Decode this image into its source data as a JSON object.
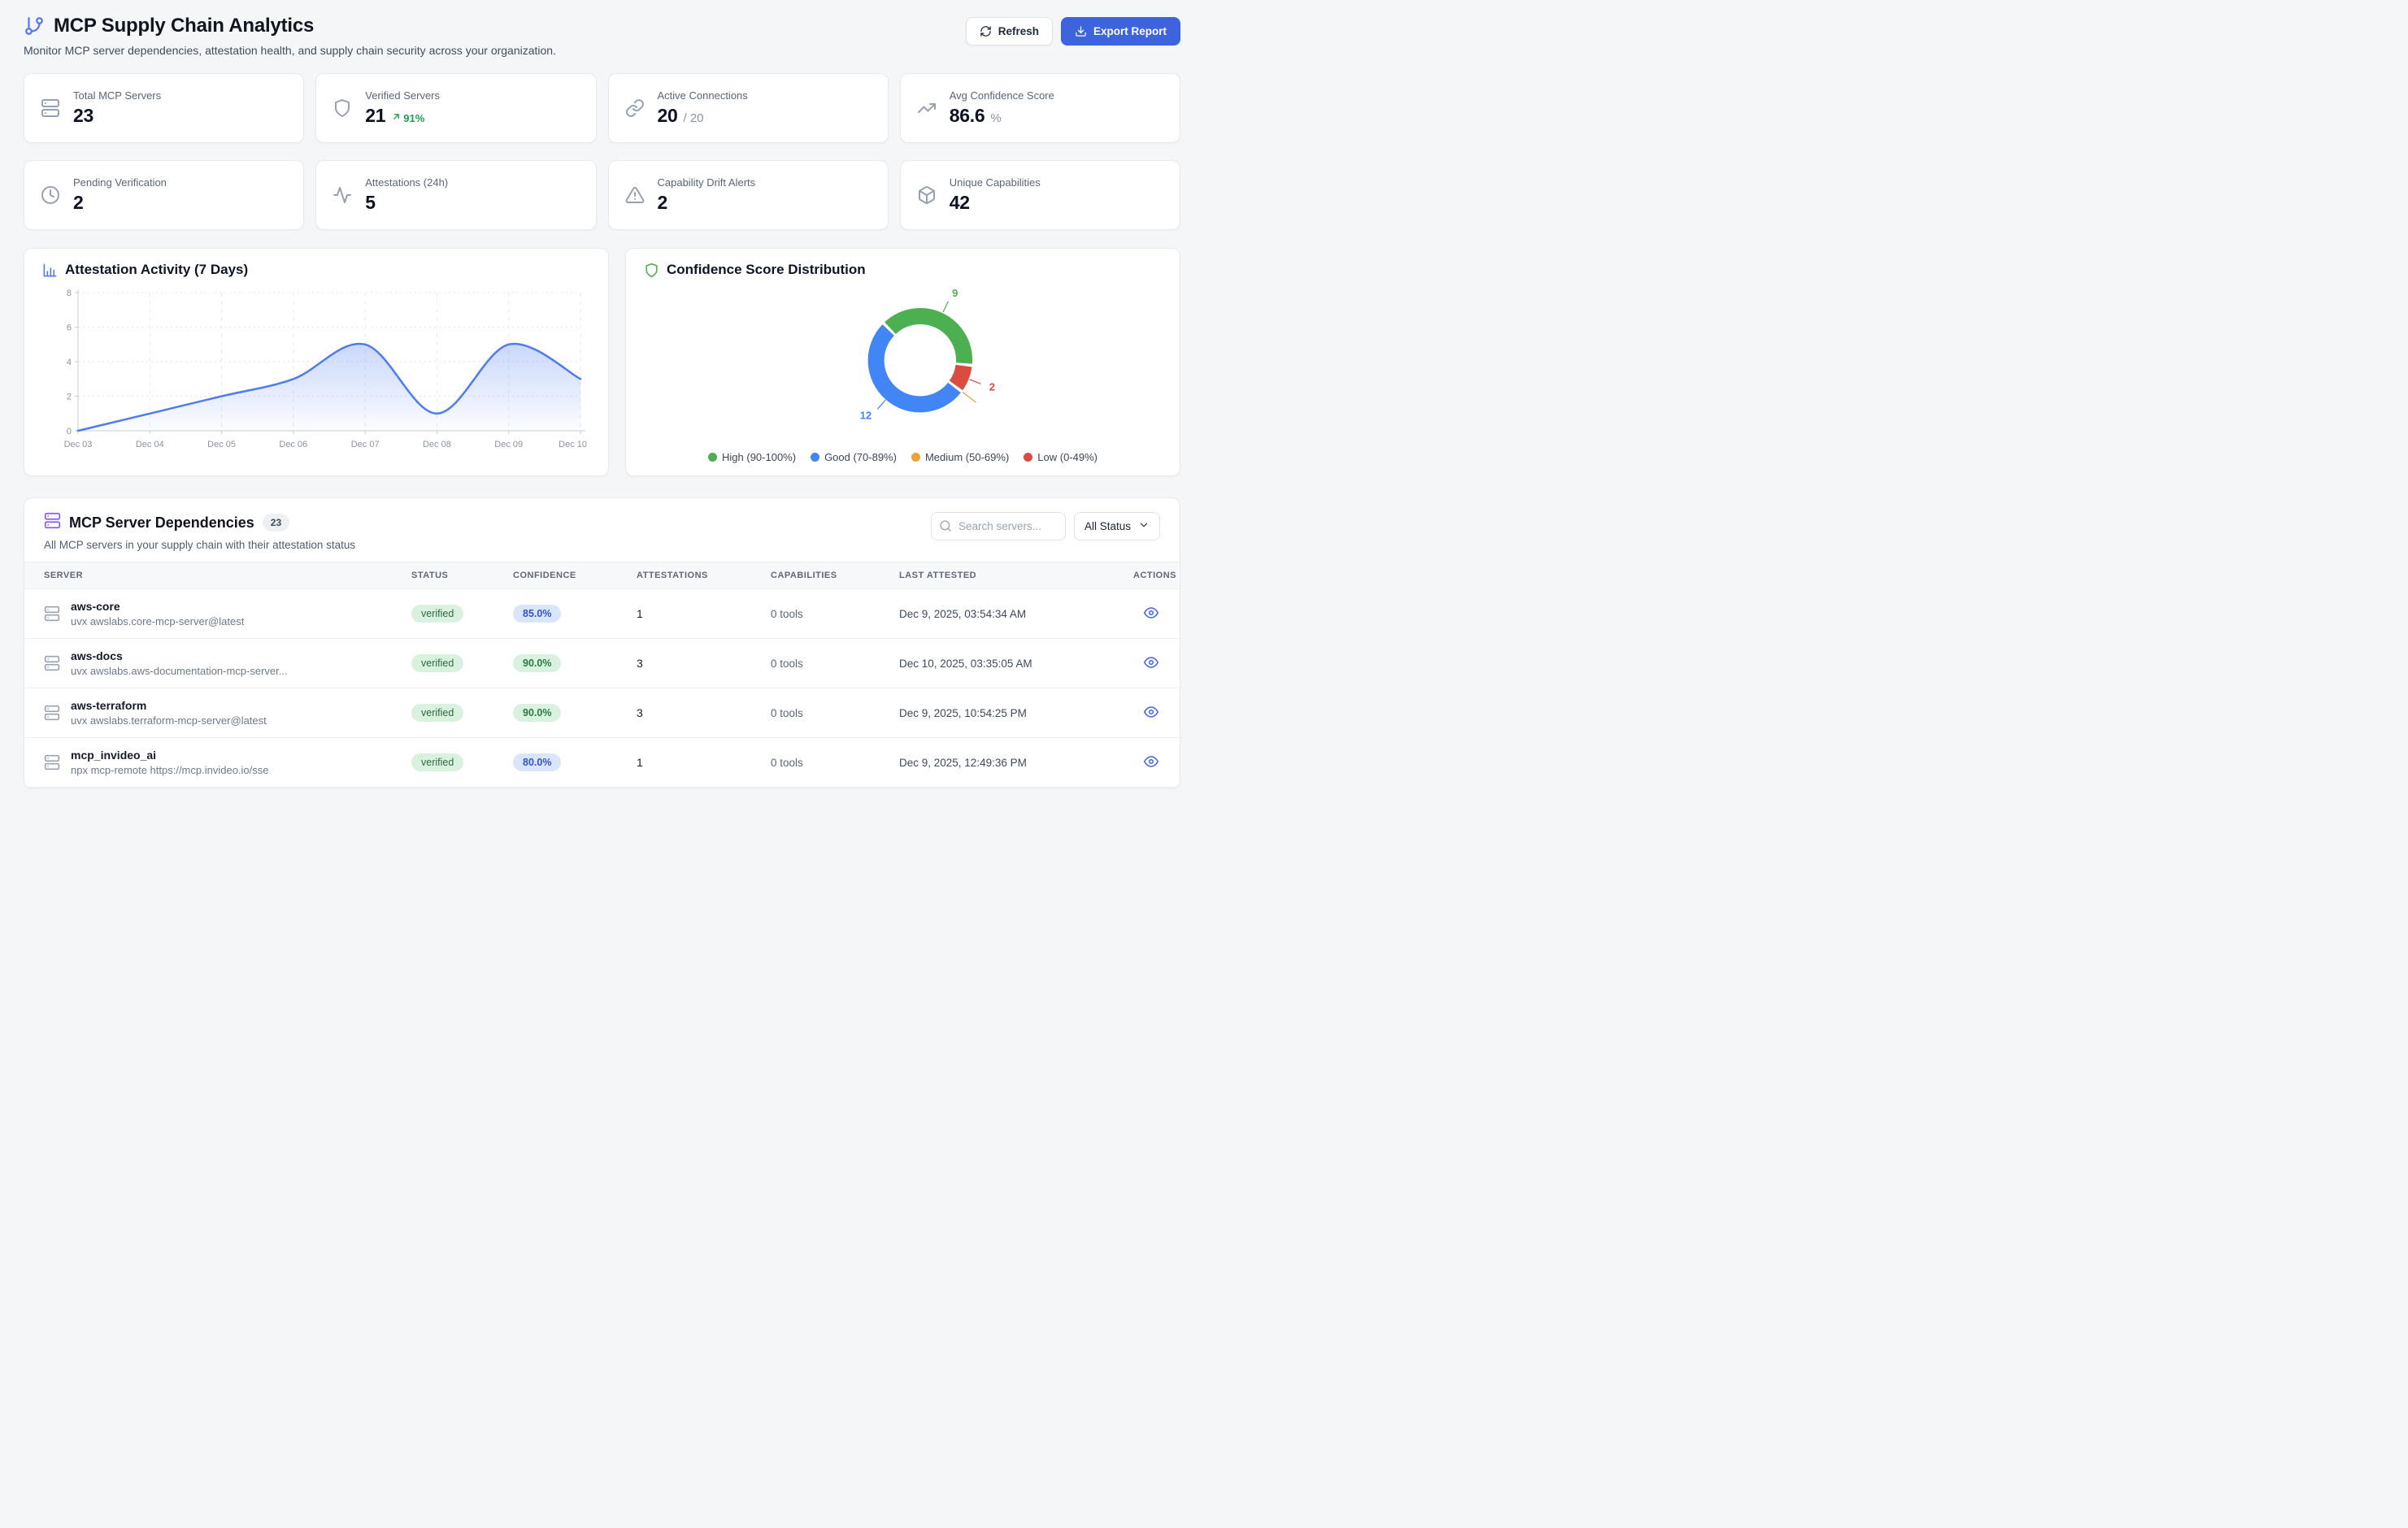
{
  "header": {
    "title": "MCP Supply Chain Analytics",
    "subtitle": "Monitor MCP server dependencies, attestation health, and supply chain security across your organization.",
    "refresh_label": "Refresh",
    "export_label": "Export Report"
  },
  "colors": {
    "accent": "#3d63dd",
    "high_green": "#4caf50",
    "good_blue": "#4285f4",
    "medium_orange": "#eba236",
    "low_red": "#da4b40",
    "line_blue": "#4e7cf0",
    "title_icon_blue": "#5574f5",
    "table_icon_purple": "#8b5cf6",
    "trend_green": "#1d9e4f"
  },
  "stats": [
    {
      "icon": "server-icon",
      "label": "Total MCP Servers",
      "value": "23"
    },
    {
      "icon": "shield-icon",
      "label": "Verified Servers",
      "value": "21",
      "trend": "91%"
    },
    {
      "icon": "link-icon",
      "label": "Active Connections",
      "value": "20",
      "suffix": "/ 20"
    },
    {
      "icon": "trending-up-icon",
      "label": "Avg Confidence Score",
      "value": "86.6",
      "suffix": "%"
    },
    {
      "icon": "clock-icon",
      "label": "Pending Verification",
      "value": "2"
    },
    {
      "icon": "activity-icon",
      "label": "Attestations (24h)",
      "value": "5"
    },
    {
      "icon": "alert-triangle-icon",
      "label": "Capability Drift Alerts",
      "value": "2"
    },
    {
      "icon": "package-icon",
      "label": "Unique Capabilities",
      "value": "42"
    }
  ],
  "chart_data": [
    {
      "type": "area",
      "title": "Attestation Activity (7 Days)",
      "x": [
        "Dec 03",
        "Dec 04",
        "Dec 05",
        "Dec 06",
        "Dec 07",
        "Dec 08",
        "Dec 09",
        "Dec 10"
      ],
      "values": [
        0,
        1,
        2,
        3,
        5,
        1,
        5,
        3
      ],
      "xlabel": "",
      "ylabel": "",
      "ylim": [
        0,
        8
      ],
      "yticks": [
        0,
        2,
        4,
        6,
        8
      ],
      "grid": true,
      "line_color": "#4e7cf0",
      "legend_position": "none"
    },
    {
      "type": "donut",
      "title": "Confidence Score Distribution",
      "segments": [
        {
          "label": "High (90-100%)",
          "value": 9,
          "color": "#4caf50"
        },
        {
          "label": "Good (70-89%)",
          "value": 12,
          "color": "#4285f4"
        },
        {
          "label": "Medium (50-69%)",
          "value": 0,
          "color": "#eba236"
        },
        {
          "label": "Low (0-49%)",
          "value": 2,
          "color": "#da4b40"
        }
      ],
      "total": 23,
      "legend_position": "bottom"
    }
  ],
  "table": {
    "title": "MCP Server Dependencies",
    "count_badge": "23",
    "subtitle": "All MCP servers in your supply chain with their attestation status",
    "search_placeholder": "Search servers...",
    "status_filter": "All Status",
    "columns": [
      "Server",
      "Status",
      "Confidence",
      "Attestations",
      "Capabilities",
      "Last Attested",
      "Actions"
    ],
    "rows": [
      {
        "name": "aws-core",
        "command": "uvx awslabs.core-mcp-server@latest",
        "status": "verified",
        "confidence": "85.0%",
        "attestations": "1",
        "capabilities": "0 tools",
        "last_attested": "Dec 9, 2025, 03:54:34 AM"
      },
      {
        "name": "aws-docs",
        "command": "uvx awslabs.aws-documentation-mcp-server...",
        "status": "verified",
        "confidence": "90.0%",
        "attestations": "3",
        "capabilities": "0 tools",
        "last_attested": "Dec 10, 2025, 03:35:05 AM"
      },
      {
        "name": "aws-terraform",
        "command": "uvx awslabs.terraform-mcp-server@latest",
        "status": "verified",
        "confidence": "90.0%",
        "attestations": "3",
        "capabilities": "0 tools",
        "last_attested": "Dec 9, 2025, 10:54:25 PM"
      },
      {
        "name": "mcp_invideo_ai",
        "command": "npx mcp-remote https://mcp.invideo.io/sse",
        "status": "verified",
        "confidence": "80.0%",
        "attestations": "1",
        "capabilities": "0 tools",
        "last_attested": "Dec 9, 2025, 12:49:36 PM"
      }
    ]
  }
}
